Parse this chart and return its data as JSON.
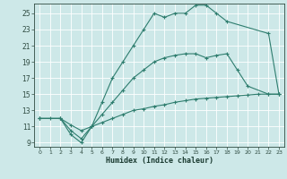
{
  "xlabel": "Humidex (Indice chaleur)",
  "bg_color": "#cde8e8",
  "grid_color": "#ffffff",
  "line_color": "#2e7d6e",
  "xlim": [
    -0.5,
    23.5
  ],
  "ylim": [
    8.5,
    26.2
  ],
  "xticks": [
    0,
    1,
    2,
    3,
    4,
    5,
    6,
    7,
    8,
    9,
    10,
    11,
    12,
    13,
    14,
    15,
    16,
    17,
    18,
    19,
    20,
    21,
    22,
    23
  ],
  "yticks": [
    9,
    11,
    13,
    15,
    17,
    19,
    21,
    23,
    25
  ],
  "line1_x": [
    0,
    1,
    2,
    3,
    4,
    5,
    6,
    7,
    8,
    9,
    10,
    11,
    12,
    13,
    14,
    15,
    16,
    17,
    18,
    22,
    23
  ],
  "line1_y": [
    12,
    12,
    12,
    10,
    9,
    11,
    14,
    17,
    19,
    21,
    23,
    25,
    24.5,
    25,
    25,
    26,
    26,
    25,
    24,
    22.5,
    15
  ],
  "line2_x": [
    0,
    2,
    3,
    4,
    5,
    6,
    7,
    8,
    9,
    10,
    11,
    12,
    13,
    14,
    15,
    16,
    17,
    18,
    19,
    20,
    22,
    23
  ],
  "line2_y": [
    12,
    12,
    10.5,
    9.5,
    11,
    12.5,
    14,
    15.5,
    17,
    18,
    19,
    19.5,
    19.8,
    20,
    20,
    19.5,
    19.8,
    20,
    18,
    16,
    15,
    15
  ],
  "line3_x": [
    0,
    2,
    3,
    4,
    5,
    6,
    7,
    8,
    9,
    10,
    11,
    12,
    13,
    14,
    15,
    16,
    17,
    18,
    19,
    20,
    21,
    22,
    23
  ],
  "line3_y": [
    12,
    12,
    11.2,
    10.5,
    11,
    11.5,
    12,
    12.5,
    13,
    13.2,
    13.5,
    13.7,
    14,
    14.2,
    14.4,
    14.5,
    14.6,
    14.7,
    14.8,
    14.9,
    15,
    15,
    15
  ]
}
